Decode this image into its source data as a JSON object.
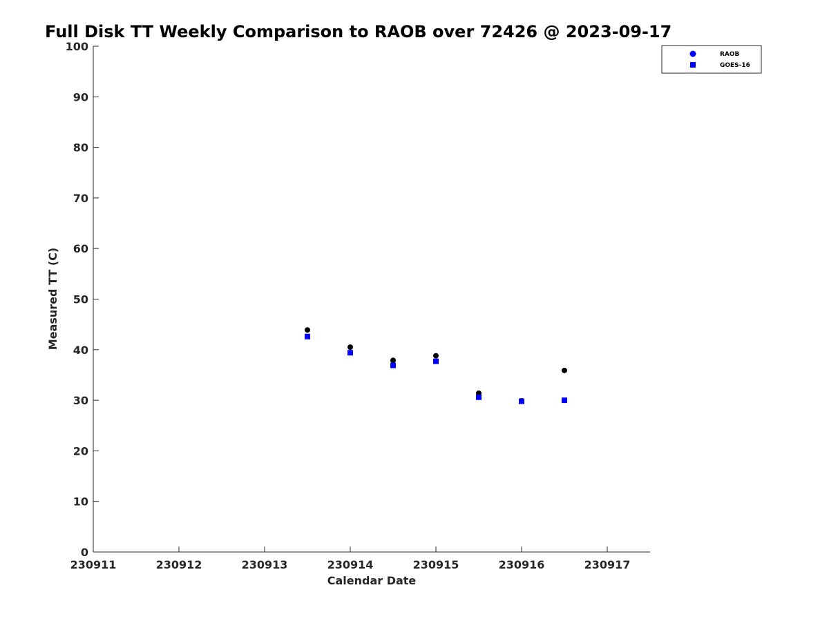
{
  "chart_data": {
    "type": "scatter",
    "title": "Full Disk TT Weekly Comparison to RAOB over 72426 @ 2023-09-17",
    "xlabel": "Calendar Date",
    "ylabel": "Measured TT (C)",
    "xlim": [
      230911,
      230917.5
    ],
    "ylim": [
      0,
      100
    ],
    "x_ticks": [
      230911,
      230912,
      230913,
      230914,
      230915,
      230916,
      230917
    ],
    "x_tick_labels": [
      "230911",
      "230912",
      "230913",
      "230914",
      "230915",
      "230916",
      "230917"
    ],
    "y_ticks": [
      0,
      10,
      20,
      30,
      40,
      50,
      60,
      70,
      80,
      90,
      100
    ],
    "y_tick_labels": [
      "0",
      "10",
      "20",
      "30",
      "40",
      "50",
      "60",
      "70",
      "80",
      "90",
      "100"
    ],
    "grid": false,
    "legend_position": "top-right",
    "series": [
      {
        "name": "RAOB",
        "marker": "circle",
        "color": "#000000",
        "legend_color": "#0000ff",
        "x": [
          230913.5,
          230914.0,
          230914.5,
          230915.0,
          230915.5,
          230916.0,
          230916.5
        ],
        "y": [
          43.9,
          40.5,
          37.9,
          38.8,
          31.4,
          29.9,
          35.9
        ]
      },
      {
        "name": "GOES-16",
        "marker": "square",
        "color": "#0000ff",
        "legend_color": "#0000ff",
        "x": [
          230913.5,
          230914.0,
          230914.5,
          230915.0,
          230915.5,
          230916.0,
          230916.5
        ],
        "y": [
          42.6,
          39.4,
          36.9,
          37.7,
          30.6,
          29.8,
          30.0
        ]
      }
    ]
  }
}
